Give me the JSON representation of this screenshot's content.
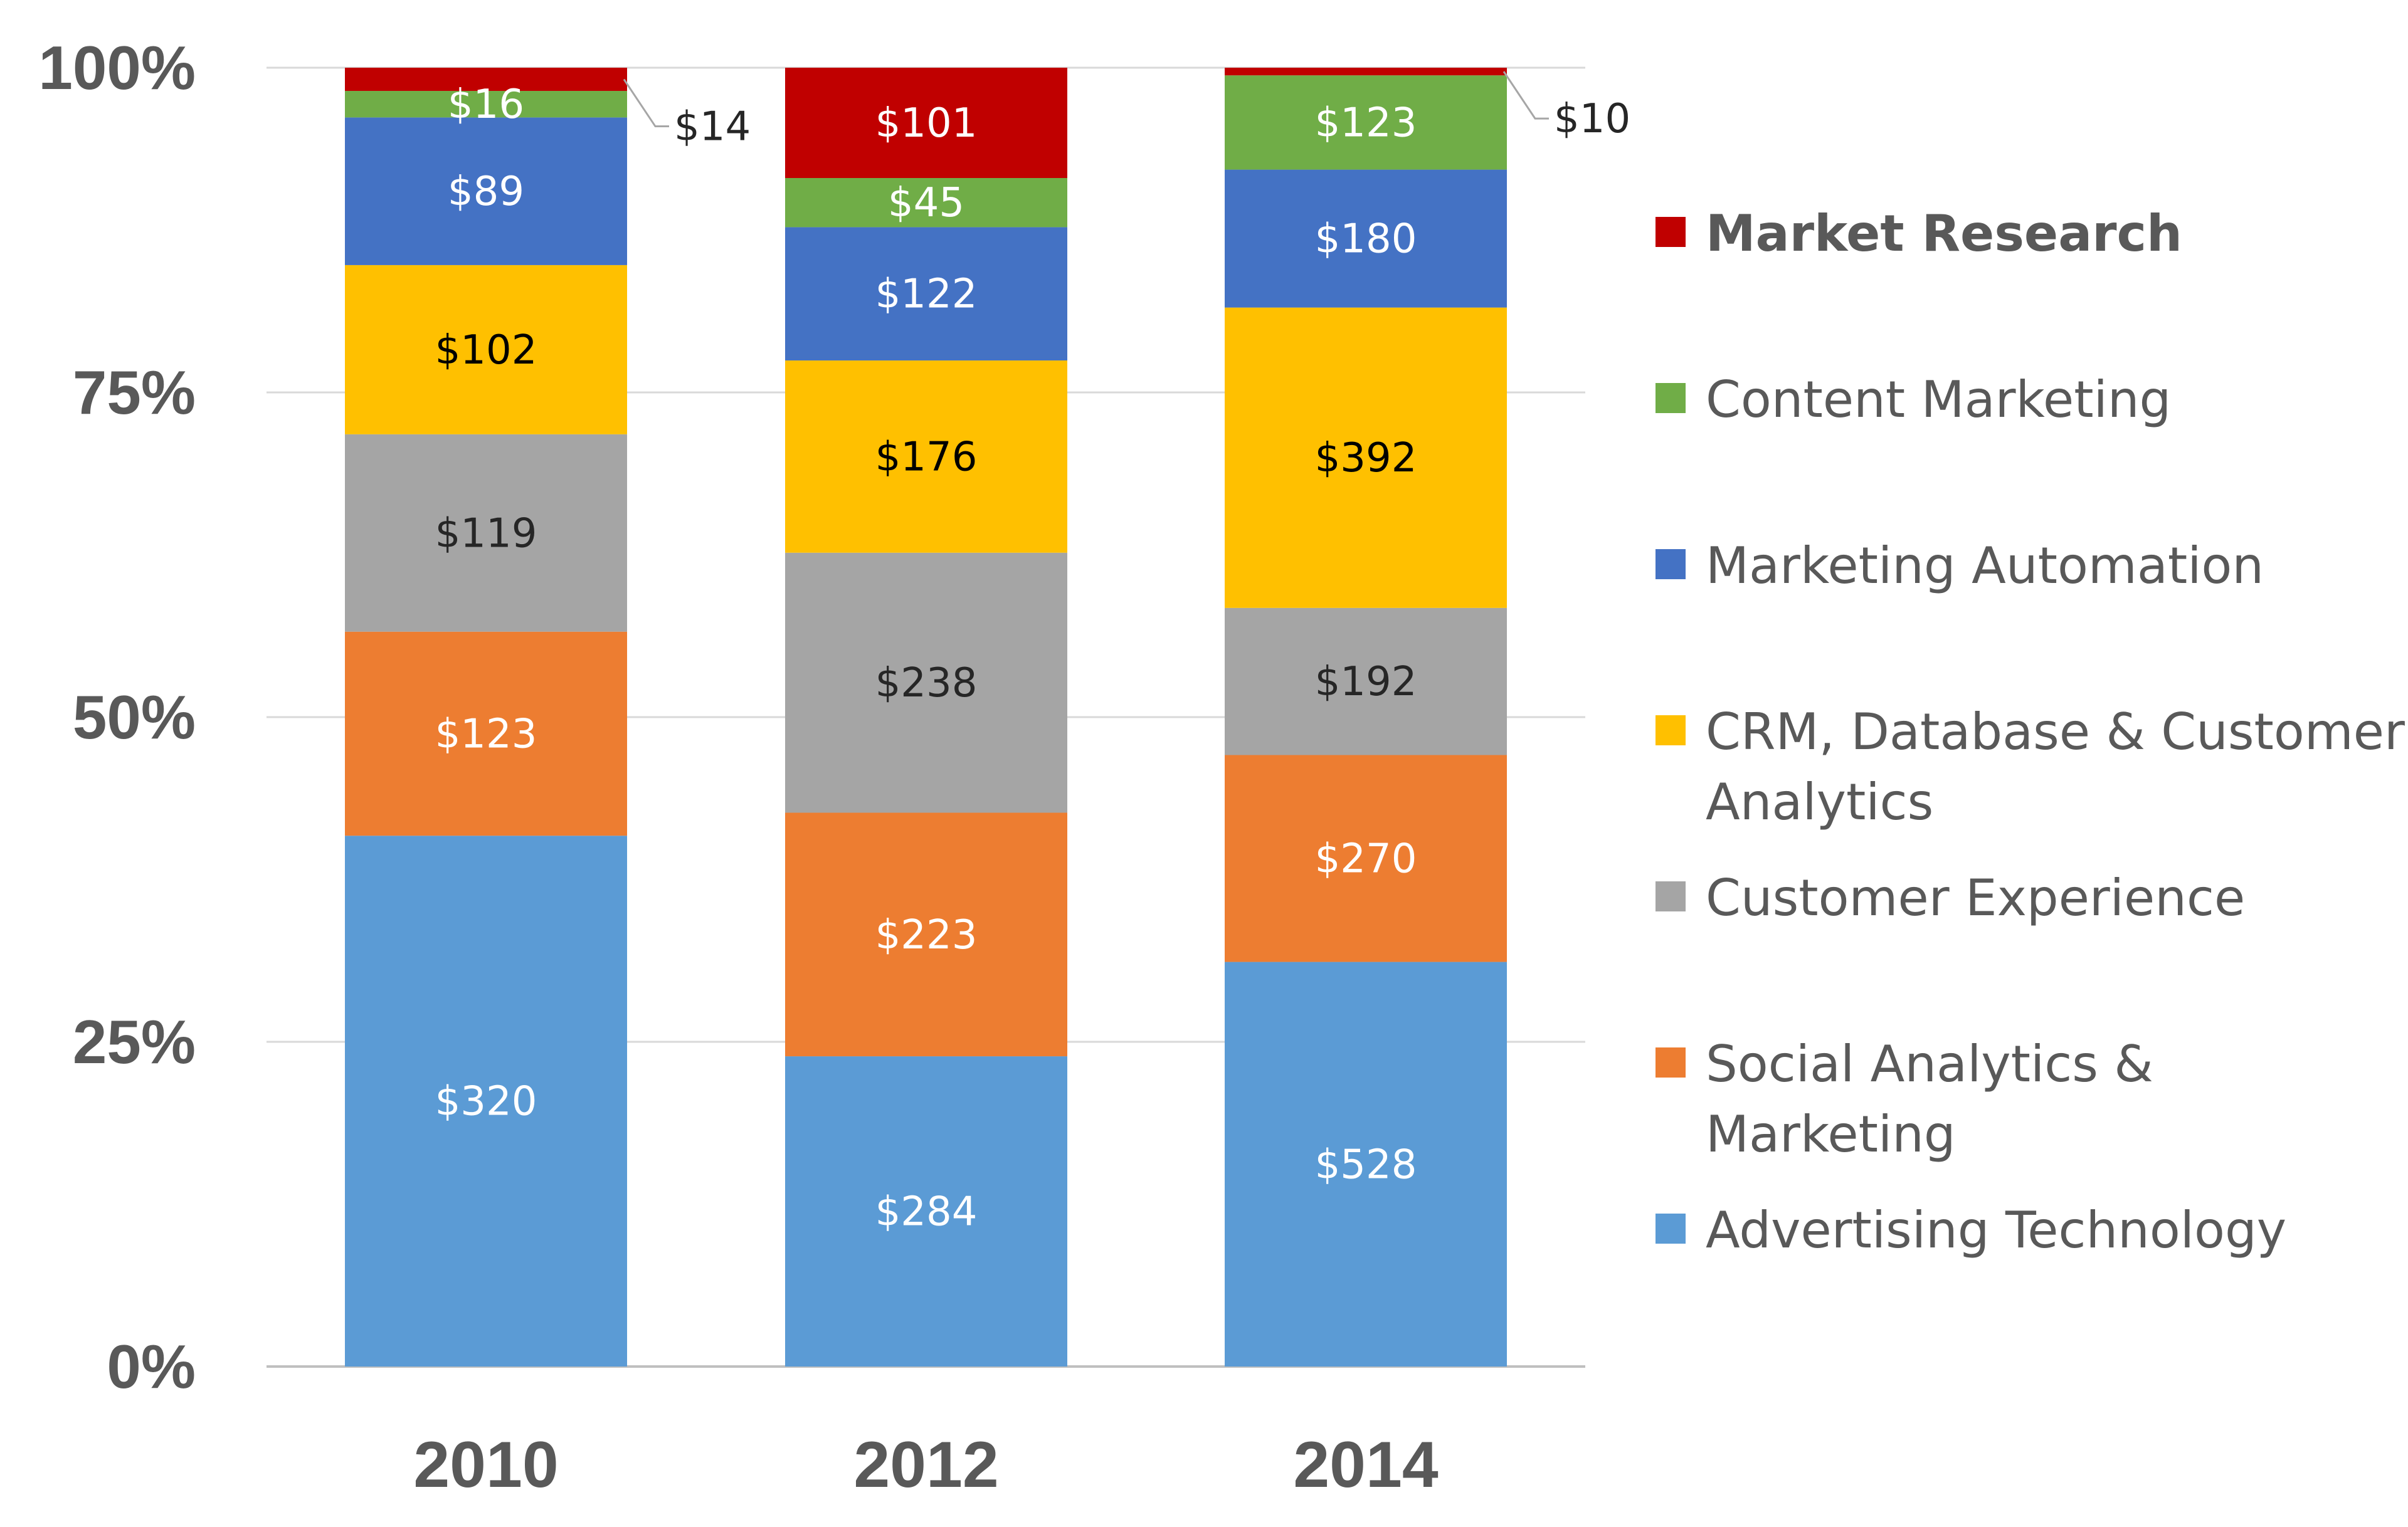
{
  "chart_data": {
    "type": "bar",
    "stacked": "percent",
    "categories": [
      "2010",
      "2012",
      "2014"
    ],
    "y_ticks": [
      "0%",
      "25%",
      "50%",
      "75%",
      "100%"
    ],
    "ylim": [
      0,
      100
    ],
    "grid": true,
    "legend_position": "right",
    "series": [
      {
        "name": "Advertising Technology",
        "color": "#5B9BD5",
        "label_color": "#ffffff",
        "values": [
          320,
          284,
          528
        ],
        "labels": [
          "$320",
          "$284",
          "$528"
        ]
      },
      {
        "name": "Social Analytics & Marketing",
        "color": "#ED7D31",
        "label_color": "#ffffff",
        "values": [
          123,
          223,
          270
        ],
        "labels": [
          "$123",
          "$223",
          "$270"
        ]
      },
      {
        "name": "Customer Experience",
        "color": "#A5A5A5",
        "label_color": "#262626",
        "values": [
          119,
          238,
          192
        ],
        "labels": [
          "$119",
          "$238",
          "$192"
        ]
      },
      {
        "name": "CRM, Database & Customer Analytics",
        "color": "#FFC000",
        "label_color": "#000000",
        "values": [
          102,
          176,
          392
        ],
        "labels": [
          "$102",
          "$176",
          "$392"
        ]
      },
      {
        "name": "Marketing Automation",
        "color": "#4472C4",
        "label_color": "#ffffff",
        "values": [
          89,
          122,
          180
        ],
        "labels": [
          "$89",
          "$122",
          "$180"
        ]
      },
      {
        "name": "Content Marketing",
        "color": "#70AD47",
        "label_color": "#ffffff",
        "values": [
          16,
          45,
          123
        ],
        "labels": [
          "$16",
          "$45",
          "$123"
        ]
      },
      {
        "name": "Market Research",
        "color": "#C00000",
        "label_color": "#ffffff",
        "values": [
          14,
          101,
          10
        ],
        "labels": [
          "$14",
          "$101",
          "$10"
        ],
        "legend_bold": true
      }
    ]
  }
}
